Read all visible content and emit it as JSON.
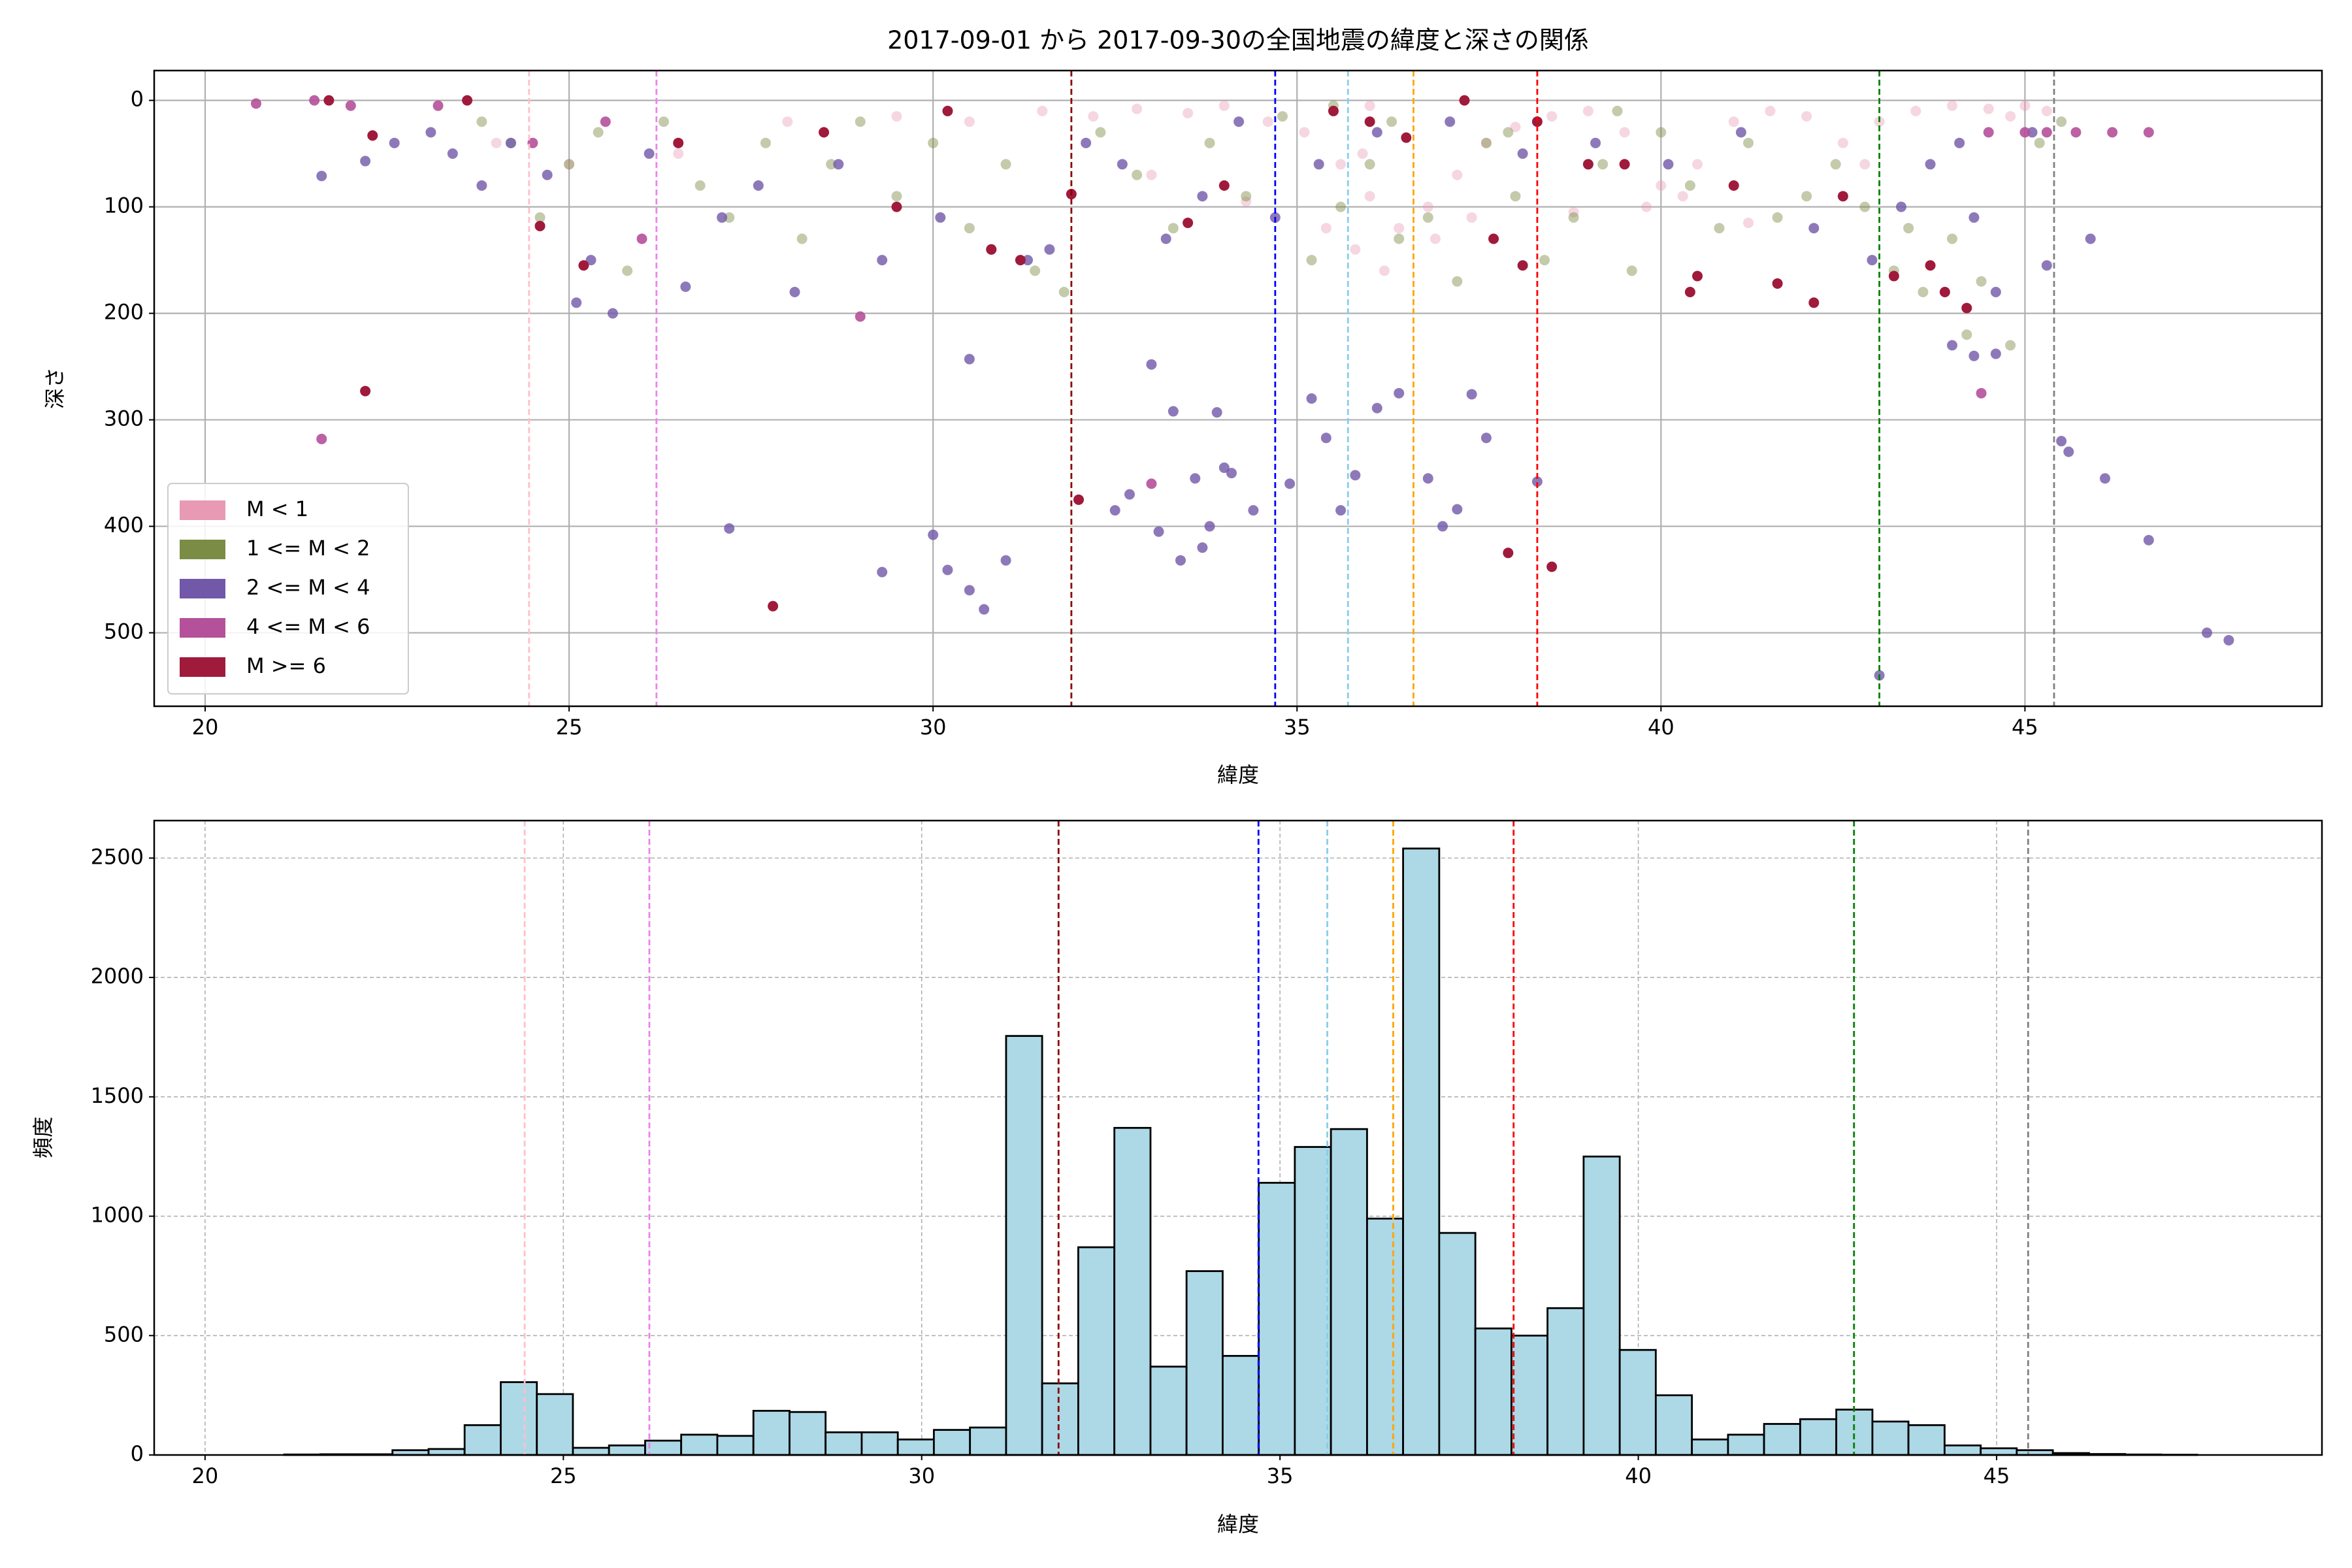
{
  "chart_data": [
    {
      "type": "scatter",
      "title": "2017-09-01 から 2017-09-30の全国地震の緯度と深さの関係",
      "x_label": "緯度",
      "y_label": "深さ",
      "xlim": [
        19.3,
        49.08
      ],
      "ylim": [
        569,
        -28
      ],
      "xticks": [
        20,
        25,
        30,
        35,
        40,
        45
      ],
      "yticks": [
        0,
        100,
        200,
        300,
        400,
        500
      ],
      "grid": true,
      "grid_style": "solid",
      "legend": "lower left",
      "vlines": [
        {
          "x": 24.45,
          "color": "pink"
        },
        {
          "x": 26.2,
          "color": "violet"
        },
        {
          "x": 31.9,
          "color": "darkred"
        },
        {
          "x": 34.7,
          "color": "blue"
        },
        {
          "x": 35.7,
          "color": "skyblue"
        },
        {
          "x": 36.6,
          "color": "orange"
        },
        {
          "x": 38.3,
          "color": "red"
        },
        {
          "x": 43.0,
          "color": "green"
        },
        {
          "x": 45.4,
          "color": "gray"
        }
      ],
      "series": [
        {
          "name": "M < 1",
          "color": "#e899b4",
          "alpha": 0.4,
          "x": [
            31.5,
            32.2,
            32.8,
            33.5,
            34.0,
            34.6,
            35.1,
            35.6,
            36.0,
            36.4,
            36.8,
            37.2,
            37.6,
            38.0,
            38.5,
            39.0,
            39.5,
            40.0,
            40.5,
            41.0,
            41.5,
            42.0,
            42.5,
            43.0,
            43.5,
            44.0,
            44.5,
            45.0,
            45.3,
            35.8,
            36.2,
            36.9,
            37.4,
            35.4,
            34.3,
            33.0,
            39.8,
            41.2,
            42.8,
            44.8,
            24.0,
            25.0,
            26.5,
            28.0,
            29.5,
            30.5,
            36.0,
            35.9,
            38.8,
            40.3
          ],
          "values": [
            10,
            15,
            8,
            12,
            5,
            20,
            30,
            60,
            90,
            120,
            100,
            70,
            40,
            25,
            15,
            10,
            30,
            80,
            60,
            20,
            10,
            15,
            40,
            20,
            10,
            5,
            8,
            5,
            10,
            140,
            160,
            130,
            110,
            120,
            95,
            70,
            100,
            115,
            60,
            15,
            40,
            60,
            50,
            20,
            15,
            20,
            5,
            50,
            105,
            90
          ]
        },
        {
          "name": "1 <= M < 2",
          "color": "#7b8c45",
          "alpha": 0.45,
          "x": [
            23.8,
            24.2,
            24.6,
            25.0,
            25.4,
            25.8,
            26.3,
            26.8,
            27.2,
            27.7,
            28.2,
            28.6,
            29.0,
            29.5,
            30.0,
            30.5,
            31.0,
            31.4,
            31.8,
            32.3,
            32.8,
            33.3,
            33.8,
            34.3,
            34.8,
            35.2,
            35.6,
            36.0,
            36.4,
            36.8,
            37.2,
            37.6,
            38.0,
            38.4,
            38.8,
            39.2,
            39.6,
            40.0,
            40.4,
            40.8,
            41.2,
            41.6,
            42.0,
            42.4,
            42.8,
            43.2,
            43.6,
            44.0,
            44.4,
            44.8,
            45.2,
            45.5,
            36.3,
            35.5,
            37.9,
            39.4,
            43.4,
            44.2
          ],
          "values": [
            20,
            40,
            110,
            60,
            30,
            160,
            20,
            80,
            110,
            40,
            130,
            60,
            20,
            90,
            40,
            120,
            60,
            160,
            180,
            30,
            70,
            120,
            40,
            90,
            15,
            150,
            100,
            60,
            130,
            110,
            170,
            40,
            90,
            150,
            110,
            60,
            160,
            30,
            80,
            120,
            40,
            110,
            90,
            60,
            100,
            160,
            180,
            130,
            170,
            230,
            40,
            20,
            20,
            5,
            30,
            10,
            120,
            220
          ]
        },
        {
          "name": "2 <= M < 4",
          "color": "#7158a8",
          "alpha": 0.8,
          "x": [
            21.6,
            22.2,
            22.6,
            23.1,
            23.4,
            23.8,
            24.2,
            24.7,
            25.1,
            25.3,
            25.6,
            26.1,
            26.6,
            27.1,
            27.6,
            28.1,
            28.7,
            29.3,
            30.1,
            30.8,
            31.3,
            31.6,
            32.1,
            32.6,
            33.2,
            33.7,
            34.2,
            34.7,
            35.3,
            36.1,
            37.1,
            38.1,
            39.1,
            40.1,
            41.1,
            42.1,
            42.9,
            43.3,
            43.7,
            44.1,
            44.3,
            44.6,
            45.1,
            27.2,
            29.3,
            30.0,
            30.2,
            30.5,
            30.7,
            31.0,
            30.5,
            32.5,
            32.7,
            33.1,
            33.4,
            33.7,
            33.8,
            33.6,
            34.0,
            34.1,
            34.4,
            34.9,
            33.0,
            33.3,
            33.9,
            35.2,
            35.4,
            35.6,
            35.8,
            36.1,
            36.4,
            36.8,
            37.0,
            37.2,
            37.4,
            37.6,
            38.3,
            43.0,
            44.0,
            44.3,
            44.6,
            45.3,
            45.5,
            45.6,
            45.9,
            46.1,
            46.7,
            47.5,
            47.8
          ],
          "values": [
            71,
            57,
            40,
            30,
            50,
            80,
            40,
            70,
            190,
            150,
            200,
            50,
            175,
            110,
            80,
            180,
            60,
            150,
            110,
            140,
            150,
            140,
            40,
            60,
            130,
            90,
            20,
            110,
            60,
            30,
            20,
            50,
            40,
            60,
            30,
            120,
            150,
            100,
            60,
            40,
            110,
            180,
            30,
            402,
            443,
            408,
            441,
            460,
            478,
            432,
            243,
            385,
            370,
            405,
            432,
            420,
            400,
            355,
            345,
            350,
            385,
            360,
            248,
            292,
            293,
            280,
            317,
            385,
            352,
            289,
            275,
            355,
            400,
            384,
            276,
            317,
            358,
            540,
            230,
            240,
            238,
            155,
            320,
            330,
            130,
            355,
            413,
            500,
            507
          ]
        },
        {
          "name": "4 <= M < 6",
          "color": "#b5509a",
          "alpha": 0.9,
          "x": [
            20.7,
            21.6,
            21.5,
            22.0,
            24.5,
            26.0,
            29.0,
            33.0,
            44.4,
            44.5,
            45.0,
            45.3,
            45.7,
            46.2,
            46.7,
            23.2,
            25.5
          ],
          "values": [
            3,
            318,
            0,
            5,
            40,
            130,
            203,
            360,
            275,
            30,
            30,
            30,
            30,
            30,
            30,
            5,
            20
          ]
        },
        {
          "name": "M >= 6",
          "color": "#a01a3c",
          "alpha": 1,
          "x": [
            22.2,
            27.8,
            38.5,
            37.9,
            21.7,
            22.3,
            23.6,
            24.6,
            25.2,
            30.8,
            31.9,
            32.0,
            33.5,
            36.5,
            38.1,
            37.7,
            40.4,
            40.5,
            41.6,
            42.1,
            43.2,
            43.7,
            44.2,
            43.9,
            37.3,
            39.0,
            41.0,
            29.5,
            35.5,
            26.5,
            28.5,
            31.2,
            34.0,
            36.0,
            39.5,
            42.5,
            38.3,
            30.2
          ],
          "values": [
            273,
            475,
            438,
            425,
            0,
            33,
            0,
            118,
            155,
            140,
            88,
            375,
            115,
            35,
            155,
            130,
            180,
            165,
            172,
            190,
            165,
            155,
            195,
            180,
            0,
            60,
            80,
            100,
            10,
            40,
            30,
            150,
            80,
            20,
            60,
            90,
            20,
            10
          ]
        }
      ]
    },
    {
      "type": "histogram",
      "x_label": "緯度",
      "y_label": "頻度",
      "color": "#add8e6",
      "xlim": [
        19.29,
        49.54
      ],
      "ylim": [
        0,
        2657
      ],
      "xticks": [
        20,
        25,
        30,
        35,
        40,
        45
      ],
      "yticks": [
        0,
        500,
        1000,
        1500,
        2000,
        2500
      ],
      "grid": true,
      "grid_style": "dashed",
      "vlines": [
        {
          "x": 24.46,
          "color": "pink"
        },
        {
          "x": 26.2,
          "color": "violet"
        },
        {
          "x": 31.91,
          "color": "darkred"
        },
        {
          "x": 34.7,
          "color": "blue"
        },
        {
          "x": 35.66,
          "color": "skyblue"
        },
        {
          "x": 36.58,
          "color": "orange"
        },
        {
          "x": 38.26,
          "color": "red"
        },
        {
          "x": 43.01,
          "color": "green"
        },
        {
          "x": 45.44,
          "color": "gray"
        }
      ],
      "bins": [
        20.6,
        21.104,
        21.607,
        22.111,
        22.615,
        23.119,
        23.622,
        24.126,
        24.63,
        25.133,
        25.637,
        26.141,
        26.644,
        27.148,
        27.652,
        28.156,
        28.659,
        29.163,
        29.667,
        30.17,
        30.674,
        31.178,
        31.681,
        32.185,
        32.689,
        33.193,
        33.696,
        34.2,
        34.704,
        35.207,
        35.711,
        36.215,
        36.718,
        37.222,
        37.726,
        38.23,
        38.733,
        39.237,
        39.741,
        40.244,
        40.748,
        41.252,
        41.755,
        42.259,
        42.763,
        43.267,
        43.77,
        44.274,
        44.778,
        45.281,
        45.785,
        46.289,
        46.792,
        47.296,
        47.8
      ],
      "values": [
        0,
        2,
        3,
        3,
        20,
        25,
        125,
        305,
        255,
        30,
        40,
        60,
        85,
        80,
        185,
        180,
        95,
        95,
        65,
        105,
        115,
        1755,
        300,
        870,
        1370,
        370,
        770,
        415,
        1140,
        1290,
        1365,
        990,
        2540,
        930,
        530,
        500,
        615,
        1250,
        440,
        250,
        65,
        85,
        130,
        150,
        190,
        140,
        125,
        40,
        28,
        20,
        8,
        4,
        2,
        1
      ]
    }
  ]
}
